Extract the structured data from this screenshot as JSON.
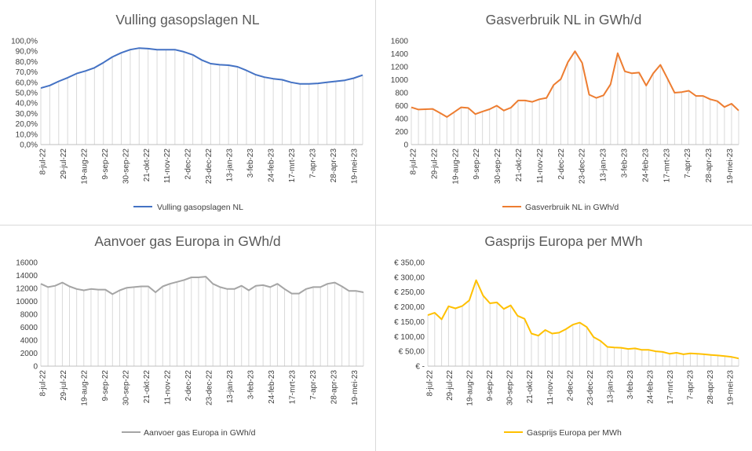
{
  "dates": [
    "8-jul-22",
    "29-jul-22",
    "19-aug-22",
    "9-sep-22",
    "30-sep-22",
    "21-okt-22",
    "11-nov-22",
    "2-dec-22",
    "23-dec-22",
    "13-jan-23",
    "3-feb-23",
    "24-feb-23",
    "17-mrt-23",
    "7-apr-23",
    "28-apr-23",
    "19-mei-23"
  ],
  "colors": {
    "chart1": "#4472c4",
    "chart2": "#ed7d31",
    "chart3": "#a5a5a5",
    "chart4": "#ffc000"
  },
  "chart_data": [
    {
      "type": "area",
      "title": "Vulling gasopslagen NL",
      "legend": "Vulling gasopslagen NL",
      "legend_position": "bottom",
      "ylim": [
        0,
        100
      ],
      "y_ticks": [
        "0,0%",
        "10,0%",
        "20,0%",
        "30,0%",
        "40,0%",
        "50,0%",
        "60,0%",
        "70,0%",
        "80,0%",
        "90,0%",
        "100,0%"
      ],
      "x_ticks": [
        "8-jul-22",
        "29-jul-22",
        "19-aug-22",
        "9-sep-22",
        "30-sep-22",
        "21-okt-22",
        "11-nov-22",
        "2-dec-22",
        "23-dec-22",
        "13-jan-23",
        "3-feb-23",
        "24-feb-23",
        "17-mrt-23",
        "7-apr-23",
        "28-apr-23",
        "19-mei-23"
      ],
      "values": [
        54.5,
        57,
        61,
        64.5,
        68.5,
        71,
        74,
        79,
        84.5,
        88.5,
        91.5,
        93,
        92.5,
        91.5,
        91.5,
        91.5,
        89.5,
        86.5,
        81.5,
        78,
        77,
        76.5,
        75,
        71.5,
        67.5,
        65,
        63.5,
        62.5,
        60,
        58.5,
        58.5,
        59,
        60,
        61,
        62,
        64,
        67
      ]
    },
    {
      "type": "area",
      "title": "Gasverbruik NL in GWh/d",
      "legend": "Gasverbruik NL in GWh/d",
      "legend_position": "bottom",
      "ylim": [
        0,
        1600
      ],
      "y_ticks": [
        "0",
        "200",
        "400",
        "600",
        "800",
        "1000",
        "1200",
        "1400",
        "1600"
      ],
      "x_ticks": [
        "8-jul-22",
        "29-jul-22",
        "19-aug-22",
        "9-sep-22",
        "30-sep-22",
        "21-okt-22",
        "11-nov-22",
        "2-dec-22",
        "23-dec-22",
        "13-jan-23",
        "3-feb-23",
        "24-feb-23",
        "17-mrt-23",
        "7-apr-23",
        "28-apr-23",
        "19-mei-23"
      ],
      "values": [
        575,
        540,
        545,
        550,
        490,
        425,
        500,
        575,
        565,
        470,
        510,
        545,
        600,
        525,
        570,
        680,
        680,
        660,
        700,
        720,
        920,
        1010,
        1270,
        1440,
        1260,
        770,
        720,
        760,
        930,
        1410,
        1130,
        1100,
        1110,
        910,
        1100,
        1230,
        1020,
        800,
        810,
        830,
        750,
        750,
        700,
        670,
        580,
        630,
        525
      ]
    },
    {
      "type": "area",
      "title": "Aanvoer gas Europa in GWh/d",
      "legend": "Aanvoer gas Europa in GWh/d",
      "legend_position": "bottom",
      "ylim": [
        0,
        16000
      ],
      "y_ticks": [
        "0",
        "2000",
        "4000",
        "6000",
        "8000",
        "10000",
        "12000",
        "14000",
        "16000"
      ],
      "x_ticks": [
        "8-jul-22",
        "29-jul-22",
        "19-aug-22",
        "9-sep-22",
        "30-sep-22",
        "21-okt-22",
        "11-nov-22",
        "2-dec-22",
        "23-dec-22",
        "13-jan-23",
        "3-feb-23",
        "24-feb-23",
        "17-mrt-23",
        "7-apr-23",
        "28-apr-23",
        "19-mei-23"
      ],
      "values": [
        12700,
        12200,
        12400,
        12900,
        12300,
        11900,
        11700,
        11900,
        11800,
        11800,
        11100,
        11700,
        12100,
        12200,
        12300,
        12300,
        11400,
        12300,
        12700,
        13000,
        13300,
        13700,
        13700,
        13800,
        12700,
        12200,
        11900,
        11900,
        12400,
        11700,
        12400,
        12500,
        12200,
        12700,
        11900,
        11200,
        11200,
        11900,
        12200,
        12200,
        12700,
        12900,
        12300,
        11600,
        11600,
        11400
      ]
    },
    {
      "type": "area",
      "title": "Gasprijs Europa per MWh",
      "legend": "Gasprijs Europa per MWh",
      "legend_position": "bottom",
      "ylim": [
        0,
        350
      ],
      "y_ticks": [
        "€ -",
        "€ 50,00",
        "€ 100,00",
        "€ 150,00",
        "€ 200,00",
        "€ 250,00",
        "€ 300,00",
        "€ 350,00"
      ],
      "x_ticks": [
        "8-jul-22",
        "29-jul-22",
        "19-aug-22",
        "9-sep-22",
        "30-sep-22",
        "21-okt-22",
        "11-nov-22",
        "2-dec-22",
        "23-dec-22",
        "13-jan-23",
        "3-feb-23",
        "24-feb-23",
        "17-mrt-23",
        "7-apr-23",
        "28-apr-23",
        "19-mei-23"
      ],
      "values": [
        172,
        180,
        158,
        202,
        195,
        203,
        222,
        290,
        238,
        212,
        215,
        193,
        205,
        170,
        160,
        110,
        103,
        122,
        110,
        113,
        125,
        140,
        147,
        132,
        98,
        85,
        65,
        63,
        62,
        58,
        60,
        55,
        55,
        50,
        48,
        42,
        45,
        40,
        43,
        42,
        40,
        38,
        36,
        34,
        31,
        26
      ]
    }
  ]
}
